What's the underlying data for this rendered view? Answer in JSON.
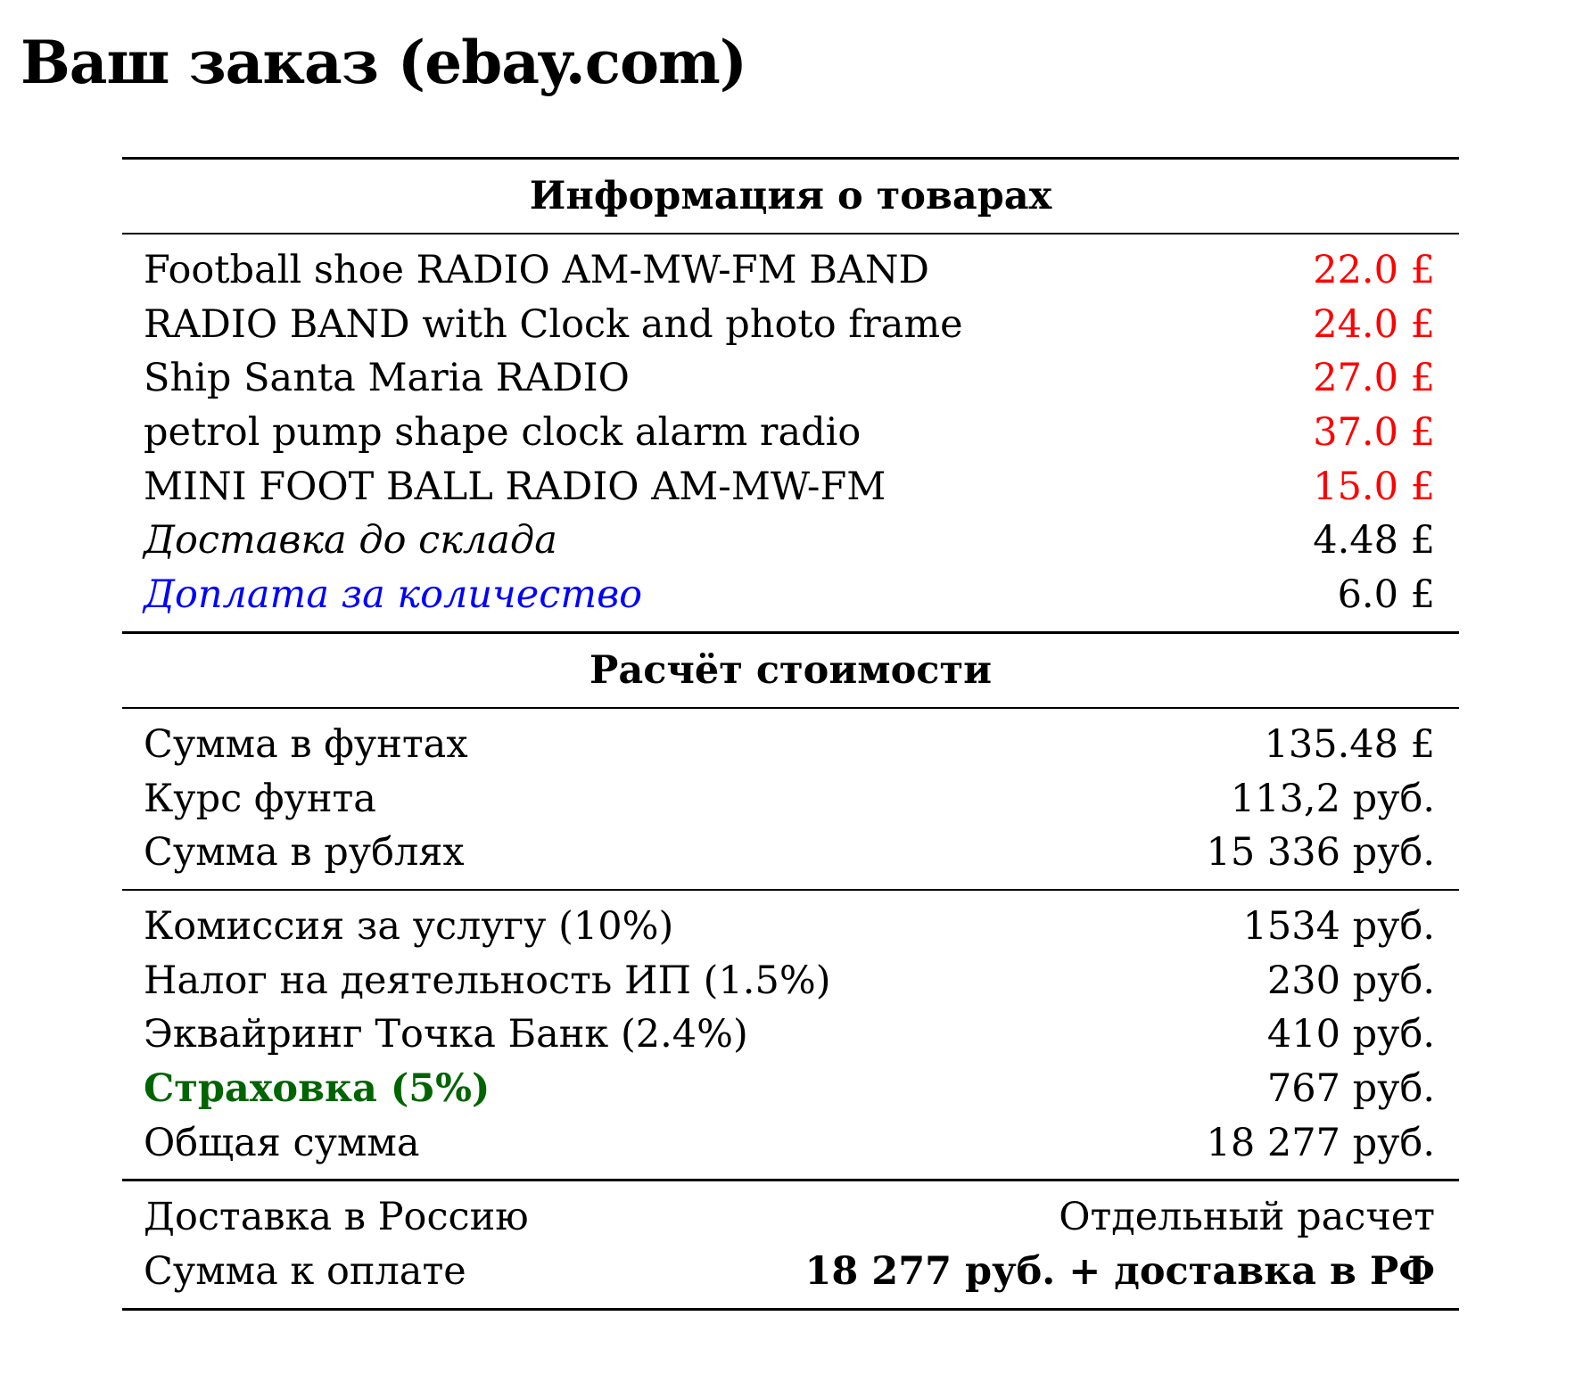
{
  "title": "Ваш заказ (ebay.com)",
  "items_section": {
    "header": "Информация о товарах",
    "items": [
      {
        "name": "Football shoe RADIO AM-MW-FM BAND",
        "price": "22.0 £"
      },
      {
        "name": "RADIO BAND with Clock and photo frame",
        "price": "24.0 £"
      },
      {
        "name": "Ship Santa Maria RADIO",
        "price": "27.0 £"
      },
      {
        "name": "petrol pump shape clock alarm radio",
        "price": "37.0 £"
      },
      {
        "name": "MINI FOOT BALL RADIO AM-MW-FM",
        "price": "15.0 £"
      }
    ],
    "warehouse_shipping": {
      "label": "Доставка до склада",
      "value": "4.48 £"
    },
    "quantity_surcharge": {
      "label": "Доплата за количество",
      "value": "6.0 £"
    }
  },
  "calc_section": {
    "header": "Расчёт стоимости",
    "rows1": [
      {
        "label": "Сумма в фунтах",
        "value": "135.48 £"
      },
      {
        "label": "Курс фунта",
        "value": "113,2 руб."
      },
      {
        "label": "Сумма в рублях",
        "value": "15 336 руб."
      }
    ],
    "rows2": [
      {
        "label": "Комиссия за услугу (10%)",
        "value": "1534 руб."
      },
      {
        "label": "Налог на деятельность ИП (1.5%)",
        "value": "230 руб."
      },
      {
        "label": "Эквайринг Точка Банк (2.4%)",
        "value": "410 руб."
      },
      {
        "label": "Страховка (5%)",
        "value": "767 руб."
      },
      {
        "label": "Общая сумма",
        "value": "18 277 руб."
      }
    ],
    "delivery": {
      "label": "Доставка в Россию",
      "value": "Отдельный расчет"
    },
    "to_pay": {
      "label": "Сумма к оплате",
      "value": "18 277 руб. + доставка в РФ"
    }
  },
  "colors": {
    "item_price": "#ff0000",
    "surcharge": "#0000ff",
    "insurance": "#006400"
  }
}
